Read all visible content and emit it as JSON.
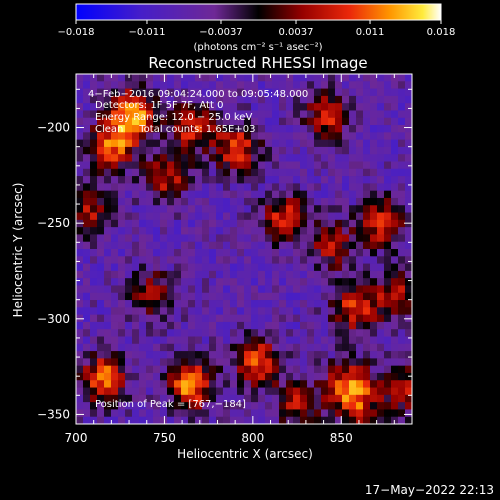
{
  "chart_data": {
    "type": "heatmap",
    "title": "Reconstructed RHESSI Image",
    "xlabel": "Heliocentric X (arcsec)",
    "ylabel": "Heliocentric Y (arcsec)",
    "xlim": [
      700,
      890
    ],
    "ylim": [
      -355,
      -172
    ],
    "x_ticks": [
      "700",
      "750",
      "800",
      "850"
    ],
    "y_ticks": [
      "-200",
      "-250",
      "-300",
      "-350"
    ],
    "colorbar": {
      "label": "(photons cm⁻² s⁻¹ asec⁻²)",
      "range": [
        -0.018,
        0.018
      ],
      "ticks": [
        "−0.018",
        "−0.011",
        "−0.0037",
        "0.0037",
        "0.011",
        "0.018"
      ]
    },
    "info_lines": [
      "4−Feb−2016 09:04:24.000 to 09:05:48.000",
      "Detectors: 1F 5F 7F, Att 0",
      "Energy Range: 12.0 − 25.0 keV",
      "Clean     Total counts: 1.65E+03"
    ],
    "peak_label": "Position of Peak = [767,−184]",
    "peak": [
      767,
      -184
    ],
    "blobs": [
      {
        "x": 732,
        "y": -193,
        "amp": 0.017
      },
      {
        "x": 720,
        "y": -210,
        "amp": 0.014
      },
      {
        "x": 766,
        "y": -200,
        "amp": 0.012
      },
      {
        "x": 791,
        "y": -211,
        "amp": 0.013
      },
      {
        "x": 751,
        "y": -226,
        "amp": 0.011
      },
      {
        "x": 707,
        "y": -243,
        "amp": 0.01
      },
      {
        "x": 842,
        "y": -194,
        "amp": 0.011
      },
      {
        "x": 818,
        "y": -247,
        "amp": 0.012
      },
      {
        "x": 873,
        "y": -250,
        "amp": 0.013
      },
      {
        "x": 845,
        "y": -262,
        "amp": 0.01
      },
      {
        "x": 857,
        "y": -295,
        "amp": 0.012
      },
      {
        "x": 880,
        "y": -288,
        "amp": 0.01
      },
      {
        "x": 743,
        "y": -287,
        "amp": 0.009
      },
      {
        "x": 803,
        "y": -323,
        "amp": 0.014
      },
      {
        "x": 716,
        "y": -331,
        "amp": 0.015
      },
      {
        "x": 765,
        "y": -334,
        "amp": 0.016
      },
      {
        "x": 854,
        "y": -334,
        "amp": 0.013
      },
      {
        "x": 826,
        "y": -345,
        "amp": 0.01
      },
      {
        "x": 887,
        "y": -337,
        "amp": 0.011
      },
      {
        "x": 860,
        "y": -346,
        "amp": 0.009
      }
    ],
    "background_min": -0.013
  },
  "timestamp": "17−May−2022 22:13"
}
